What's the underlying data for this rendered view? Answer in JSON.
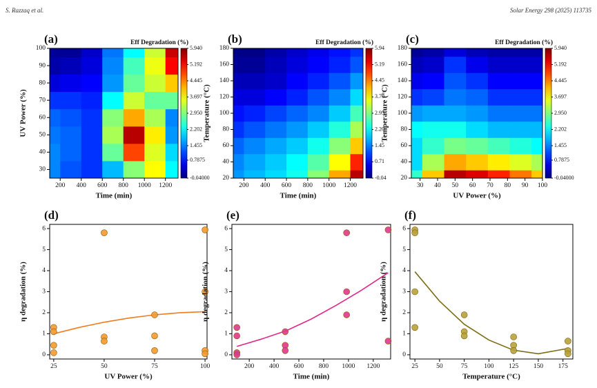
{
  "header": {
    "left": "S. Razzaq et al.",
    "right": "Solar Energy 298 (2025) 113735"
  },
  "chart_data": [
    {
      "type": "contour",
      "panel": "(a)",
      "colorbar_title": "Eff Degradation (%)",
      "x_label": "Time (min)",
      "y_label": "UV Power (%)",
      "colormap": "jet",
      "xlim": [
        100,
        1320
      ],
      "xticks": [
        200,
        400,
        600,
        800,
        1000,
        1200
      ],
      "ylim": [
        25,
        100
      ],
      "yticks": [
        30,
        40,
        50,
        60,
        70,
        80,
        90,
        100
      ],
      "x": [
        100,
        300,
        500,
        700,
        900,
        1100,
        1300
      ],
      "y": [
        30,
        40,
        50,
        60,
        70,
        80,
        90,
        100
      ],
      "z": [
        [
          1.5,
          1.2,
          1.0,
          1.8,
          3.0,
          3.7,
          2.2
        ],
        [
          1.5,
          1.3,
          1.0,
          2.8,
          4.8,
          3.5,
          2.0
        ],
        [
          1.4,
          1.3,
          1.0,
          3.2,
          5.6,
          3.8,
          1.6
        ],
        [
          1.3,
          1.2,
          1.0,
          3.0,
          4.2,
          3.2,
          1.5
        ],
        [
          1.0,
          1.0,
          0.9,
          2.2,
          3.4,
          2.8,
          2.8
        ],
        [
          0.5,
          0.6,
          0.7,
          1.6,
          2.8,
          3.4,
          4.0
        ],
        [
          0.2,
          0.3,
          0.5,
          1.5,
          2.6,
          3.6,
          5.2
        ],
        [
          0.1,
          0.1,
          0.4,
          1.4,
          2.2,
          3.4,
          5.5
        ]
      ],
      "zlim": [
        -0.04,
        5.94
      ],
      "zticks": [
        {
          "value": -0.04,
          "label": "-0.04000"
        },
        0.7875,
        1.455,
        2.202,
        {
          "value": 2.95,
          "label": "2.950"
        },
        3.697,
        4.445,
        5.192,
        {
          "value": 5.94,
          "label": "5.940"
        }
      ]
    },
    {
      "type": "contour",
      "panel": "(b)",
      "colorbar_title": "Eff Degradation (%)",
      "x_label": "Time (min)",
      "y_label": "Temperature (°C)",
      "colormap": "jet",
      "xlim": [
        100,
        1320
      ],
      "xticks": [
        200,
        400,
        600,
        800,
        1000,
        1200
      ],
      "ylim": [
        20,
        180
      ],
      "yticks": [
        20,
        40,
        60,
        80,
        100,
        120,
        140,
        160,
        180
      ],
      "x": [
        100,
        300,
        500,
        700,
        900,
        1100,
        1300
      ],
      "y": [
        20,
        40,
        60,
        80,
        100,
        120,
        140,
        160,
        180
      ],
      "z": [
        [
          1.6,
          1.8,
          2.0,
          2.3,
          3.0,
          4.2,
          5.6
        ],
        [
          1.5,
          1.7,
          1.9,
          2.2,
          2.7,
          3.7,
          5.0
        ],
        [
          1.3,
          1.5,
          1.7,
          1.9,
          2.3,
          3.0,
          4.0
        ],
        [
          1.0,
          1.2,
          1.4,
          1.6,
          1.9,
          2.4,
          3.2
        ],
        [
          0.8,
          0.9,
          1.1,
          1.3,
          1.5,
          1.9,
          2.6
        ],
        [
          0.5,
          0.5,
          0.7,
          0.9,
          1.2,
          1.5,
          2.0
        ],
        [
          0.3,
          0.3,
          0.4,
          0.7,
          0.9,
          1.2,
          1.6
        ],
        [
          0.1,
          0.1,
          0.3,
          0.5,
          0.7,
          0.9,
          1.2
        ],
        [
          0.0,
          0.0,
          0.2,
          0.4,
          0.6,
          0.8,
          1.0
        ]
      ],
      "zlim": [
        -0.04,
        5.94
      ],
      "zticks": [
        -0.04,
        0.71,
        1.45,
        {
          "value": 2.2,
          "label": "2.20"
        },
        2.95,
        {
          "value": 3.7,
          "label": "3.70"
        },
        4.45,
        5.19,
        5.94
      ]
    },
    {
      "type": "contour",
      "panel": "(c)",
      "colorbar_title": "Eff Degradation (%)",
      "x_label": "UV Power (%)",
      "y_label": "Temperature (°C)",
      "colormap": "jet",
      "xlim": [
        25,
        100
      ],
      "xticks": [
        30,
        40,
        50,
        60,
        70,
        80,
        90,
        100
      ],
      "ylim": [
        20,
        180
      ],
      "yticks": [
        20,
        40,
        60,
        80,
        100,
        120,
        140,
        160,
        180
      ],
      "x": [
        25,
        37.5,
        50,
        62.5,
        75,
        87.5,
        100
      ],
      "y": [
        20,
        40,
        60,
        80,
        100,
        120,
        140,
        160,
        180
      ],
      "z": [
        [
          2.5,
          4.0,
          5.6,
          5.4,
          5.0,
          4.5,
          4.0
        ],
        [
          2.0,
          3.2,
          4.2,
          4.0,
          3.8,
          3.5,
          3.2
        ],
        [
          2.0,
          2.5,
          2.9,
          2.8,
          2.6,
          2.4,
          2.2
        ],
        [
          2.2,
          2.3,
          2.3,
          2.0,
          1.8,
          1.8,
          1.8
        ],
        [
          1.6,
          1.7,
          1.7,
          1.6,
          1.4,
          1.4,
          1.4
        ],
        [
          1.0,
          1.1,
          1.4,
          1.3,
          1.0,
          1.0,
          1.0
        ],
        [
          0.6,
          0.7,
          1.2,
          1.0,
          0.7,
          0.7,
          0.7
        ],
        [
          0.3,
          0.4,
          1.0,
          0.6,
          0.4,
          0.4,
          0.4
        ],
        [
          0.1,
          0.2,
          0.5,
          0.3,
          0.2,
          0.2,
          0.2
        ]
      ],
      "zlim": [
        -0.04,
        5.94
      ],
      "zticks": [
        {
          "value": -0.04,
          "label": "-0.04000"
        },
        0.7875,
        1.455,
        2.202,
        {
          "value": 2.95,
          "label": "2.950"
        },
        3.697,
        4.445,
        5.192,
        {
          "value": 5.94,
          "label": "5.940"
        }
      ]
    },
    {
      "type": "scatter",
      "panel": "(d)",
      "x_label": "UV Power (%)",
      "y_label": "η degradation (%)",
      "color": "#f39a2c",
      "fit_color": "#f07c1e",
      "xlim": [
        23,
        101
      ],
      "xticks": [
        25,
        50,
        75,
        100
      ],
      "ylim": [
        -0.2,
        6.2
      ],
      "yticks": [
        0,
        1,
        2,
        3,
        4,
        5,
        6
      ],
      "x": [
        25,
        25,
        25,
        25,
        50,
        50,
        50,
        75,
        75,
        75,
        100,
        100,
        100,
        100
      ],
      "values": [
        1.3,
        1.1,
        0.45,
        0.1,
        5.8,
        0.85,
        0.65,
        1.9,
        0.9,
        0.2,
        5.94,
        3.0,
        0.2,
        0.05
      ],
      "fit_x": [
        25,
        37.5,
        50,
        62.5,
        75,
        87.5,
        100
      ],
      "fit_y": [
        1.0,
        1.3,
        1.55,
        1.75,
        1.9,
        2.0,
        2.05
      ]
    },
    {
      "type": "scatter",
      "panel": "(e)",
      "x_label": "Time (min)",
      "y_label": "η degradation (%)",
      "color": "#e0388a",
      "fit_color": "#e0288a",
      "xlim": [
        60,
        1340
      ],
      "xticks": [
        200,
        400,
        600,
        800,
        1000,
        1200
      ],
      "ylim": [
        -0.2,
        6.2
      ],
      "yticks": [
        0,
        1,
        2,
        3,
        4,
        5,
        6
      ],
      "x": [
        100,
        100,
        100,
        100,
        490,
        490,
        490,
        985,
        985,
        985,
        1320,
        1320
      ],
      "values": [
        1.3,
        0.9,
        0.1,
        0.0,
        1.1,
        0.45,
        0.2,
        5.8,
        3.0,
        1.9,
        5.94,
        0.65
      ],
      "fit_x": [
        100,
        300,
        500,
        700,
        900,
        1100,
        1320
      ],
      "fit_y": [
        0.4,
        0.75,
        1.15,
        1.7,
        2.35,
        3.05,
        3.9
      ]
    },
    {
      "type": "scatter",
      "panel": "(f)",
      "x_label": "Temperature (°C)",
      "y_label": "η degradation (%)",
      "color": "#b5a33a",
      "fit_color": "#7d6d14",
      "xlim": [
        20,
        185
      ],
      "xticks": [
        25,
        50,
        75,
        100,
        125,
        150,
        175
      ],
      "ylim": [
        -0.2,
        6.2
      ],
      "yticks": [
        0,
        1,
        2,
        3,
        4,
        5,
        6
      ],
      "x": [
        25,
        25,
        25,
        25,
        75,
        75,
        75,
        125,
        125,
        125,
        180,
        180,
        180
      ],
      "values": [
        5.94,
        5.8,
        3.0,
        1.3,
        1.9,
        1.1,
        0.9,
        0.85,
        0.45,
        0.2,
        0.65,
        0.2,
        0.05
      ],
      "fit_x": [
        25,
        50,
        75,
        100,
        125,
        150,
        180
      ],
      "fit_y": [
        3.95,
        2.55,
        1.45,
        0.7,
        0.22,
        0.05,
        0.3
      ]
    }
  ]
}
